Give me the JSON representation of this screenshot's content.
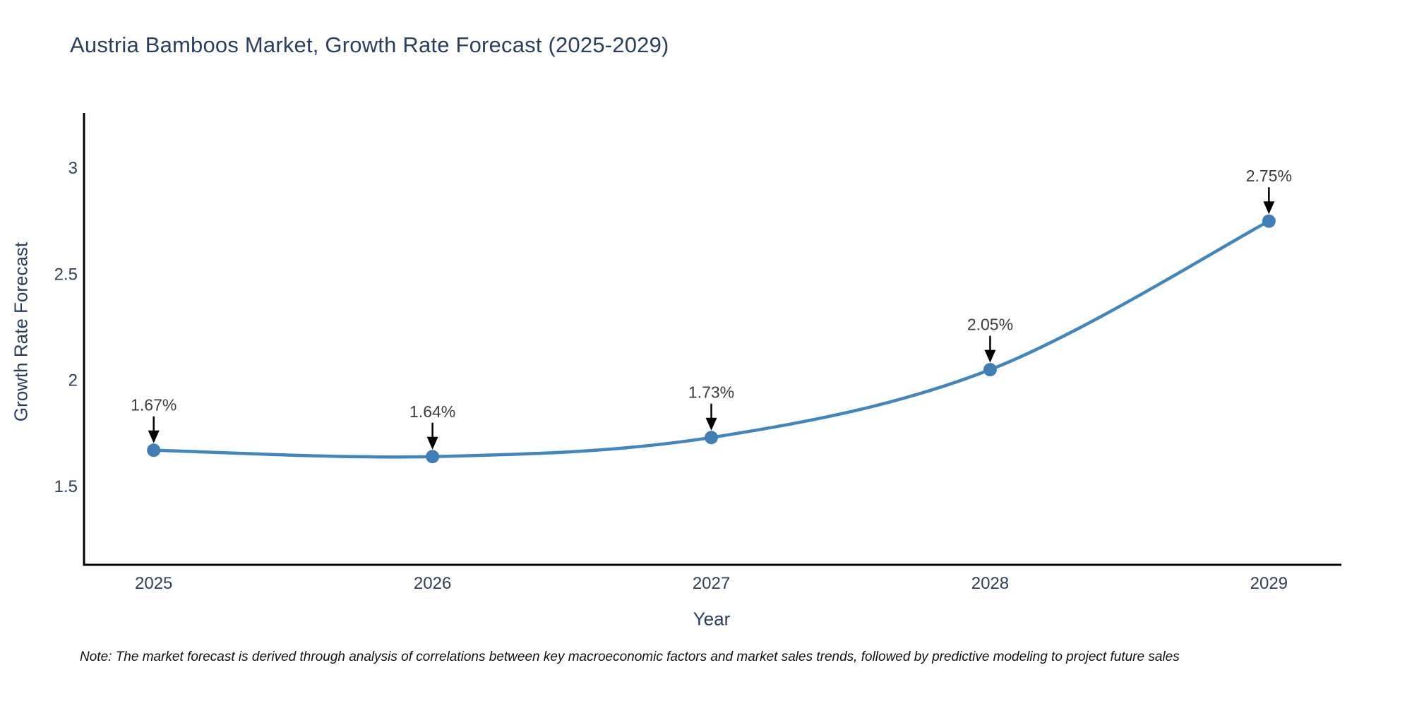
{
  "note": "Note: The market forecast is derived through analysis of correlations between key macroeconomic factors and market sales trends, followed by predictive modeling to project future sales",
  "colors": {
    "line": "#4186be",
    "marker": "#3f7fb5",
    "axis": "#000000",
    "title_text": "#2a3f5f",
    "tick_text": "#2f3f55",
    "annotation_text": "#3c3c3c",
    "annotation_arrow": "#000000",
    "note_text": "#101010",
    "background": "#ffffff"
  },
  "chart_data": {
    "type": "line",
    "title": "Austria Bamboos Market, Growth Rate Forecast (2025-2029)",
    "xlabel": "Year",
    "ylabel": "Growth Rate Forecast",
    "x": [
      2025,
      2026,
      2027,
      2028,
      2029
    ],
    "x_tick_labels": [
      "2025",
      "2026",
      "2027",
      "2028",
      "2029"
    ],
    "values": [
      1.67,
      1.64,
      1.73,
      2.05,
      2.75
    ],
    "point_labels": [
      "1.67%",
      "1.64%",
      "1.73%",
      "2.05%",
      "2.75%"
    ],
    "yticks": [
      3,
      2.5,
      2,
      1.5
    ],
    "ytick_labels": [
      "3",
      "2.5",
      "2",
      "1.5"
    ],
    "xlim": [
      2024.75,
      2029.26
    ],
    "ylim": [
      1.13,
      3.26
    ],
    "grid": false,
    "legend_position": "none",
    "line_shape": "spline",
    "markers": true
  }
}
